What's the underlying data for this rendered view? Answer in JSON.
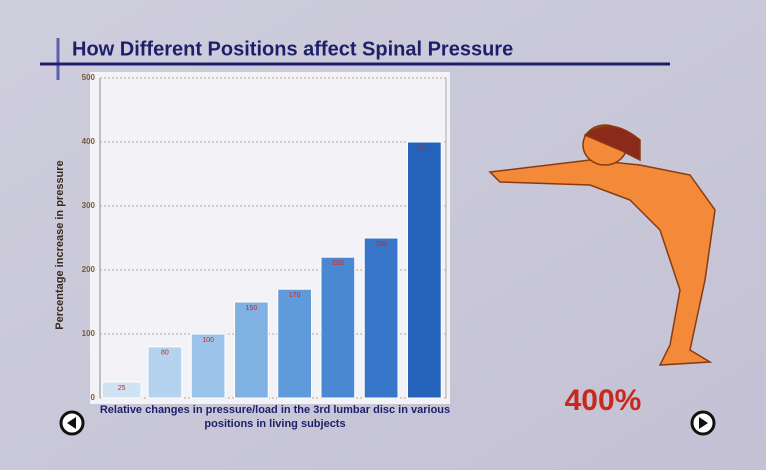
{
  "chart_data": {
    "type": "bar",
    "title": "How Different Positions affect Spinal Pressure",
    "y_label": "Percentage increase in pressure",
    "x_label": "Relative changes in pressure/load in the 3rd lumbar disc in various positions in living subjects",
    "annotation": "400%",
    "categories": [
      null,
      null,
      null,
      null,
      null,
      null,
      null,
      null
    ],
    "values": [
      25,
      80,
      100,
      150,
      170,
      220,
      250,
      400
    ],
    "colors": [
      "#cfe3f3",
      "#b5d3ef",
      "#9cc4ea",
      "#7fb1e3",
      "#5f9bda",
      "#4a88d3",
      "#3776c8",
      "#2563bb"
    ],
    "ylim": [
      0,
      500
    ],
    "yticks": [
      0,
      100,
      200,
      300,
      400,
      500
    ],
    "grid": true
  }
}
